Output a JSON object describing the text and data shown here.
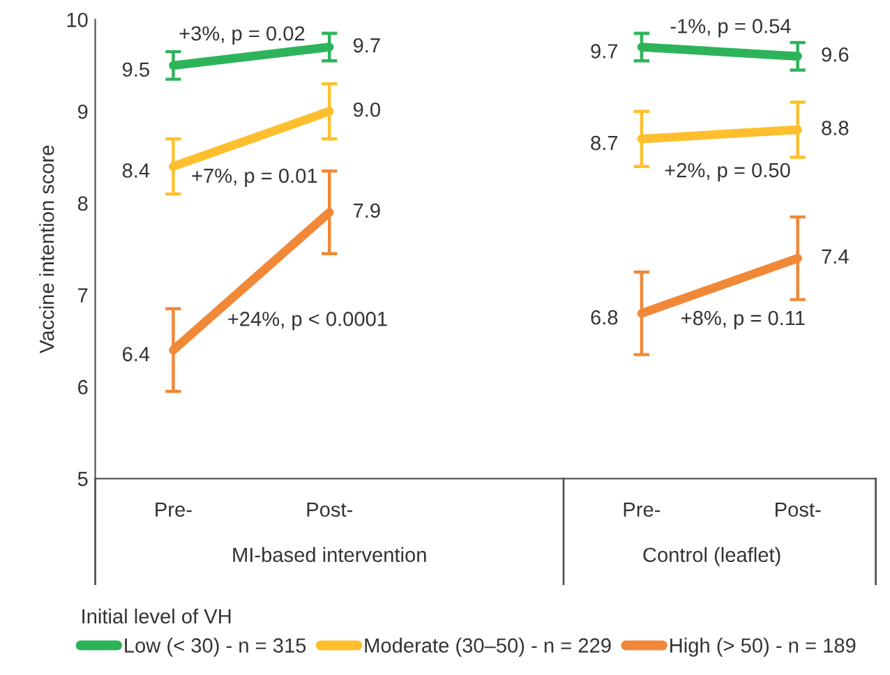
{
  "chart_data": {
    "type": "line",
    "ylabel": "Vaccine intention score",
    "legend_title": "Initial level of VH",
    "categories": [
      "Pre-",
      "Post-",
      null,
      "Pre-",
      "Post-"
    ],
    "series": [
      {
        "name": "Low (< 30) - n = 315",
        "color": "#2db45a",
        "values": [
          9.5,
          9.7,
          null,
          9.7,
          9.6
        ],
        "errors": [
          0.15,
          0.15,
          null,
          0.15,
          0.15
        ],
        "value_labels": [
          "9.5",
          "9.7",
          null,
          "9.7",
          "9.6"
        ]
      },
      {
        "name": "Moderate (30–50) - n = 229",
        "color": "#fdbf2d",
        "values": [
          8.4,
          9.0,
          null,
          8.7,
          8.8
        ],
        "errors": [
          0.3,
          0.3,
          null,
          0.3,
          0.3
        ],
        "value_labels": [
          "8.4",
          "9.0",
          null,
          "8.7",
          "8.8"
        ]
      },
      {
        "name": "High (> 50) - n = 189",
        "color": "#f08838",
        "values": [
          6.4,
          7.9,
          null,
          6.8,
          7.4
        ],
        "errors": [
          0.45,
          0.45,
          null,
          0.45,
          0.45
        ],
        "value_labels": [
          "6.4",
          "7.9",
          null,
          "6.8",
          "7.4"
        ]
      }
    ],
    "annotations": [
      "+3%, p = 0.02",
      "+7%, p = 0.01",
      "+24%, p < 0.0001",
      "-1%, p = 0.54",
      "+2%, p = 0.50",
      "+8%, p = 0.11",
      "MI-based intervention",
      "Control (leaflet)"
    ],
    "ylim": [
      5,
      10
    ],
    "yticks": [
      5,
      6,
      7,
      8,
      9,
      10
    ],
    "grid": false,
    "legend": "bottom",
    "marker": "none",
    "line_style": "solid"
  }
}
